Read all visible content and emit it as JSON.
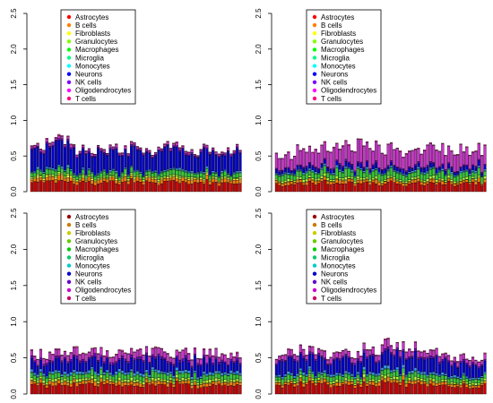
{
  "chart_data": {
    "type": "bar",
    "stacked": true,
    "categories": [
      "Astrocytes",
      "B cells",
      "Fibroblasts",
      "Granulocytes",
      "Macrophages",
      "Microglia",
      "Monocytes",
      "Neurons",
      "NK cells",
      "Oligodendrocytes",
      "T cells"
    ],
    "colors": [
      "#cc0000",
      "#ff7f00",
      "#ffff33",
      "#b3ff33",
      "#33cc33",
      "#33ffcc",
      "#3399ff",
      "#0000cc",
      "#6600cc",
      "#cc33cc",
      "#ff3399"
    ],
    "ylim": [
      0,
      2.5
    ],
    "yticks": [
      "0.0",
      "0.5",
      "1.0",
      "1.5",
      "2.0",
      "2.5"
    ],
    "panels": [
      {
        "name": "top-left",
        "legend_colors": [
          "#ff0000",
          "#ff8000",
          "#ffff00",
          "#80ff00",
          "#00ff00",
          "#00ff80",
          "#00ffff",
          "#0000ff",
          "#8000ff",
          "#ff00ff",
          "#ff0080"
        ],
        "n_bars": 70,
        "base": [
          0.14,
          0.05,
          0.02,
          0.02,
          0.06,
          0.01,
          0.02,
          0.3,
          0.02,
          0.03,
          0.01
        ],
        "means": [
          0.68,
          0.7,
          0.58,
          0.6,
          0.62,
          0.58,
          0.64,
          0.57,
          0.6,
          0.62
        ],
        "means_stack": "total"
      },
      {
        "name": "top-right",
        "legend_colors": [
          "#ff0000",
          "#ff8000",
          "#ffff00",
          "#80ff00",
          "#00ff00",
          "#00ff80",
          "#00ffff",
          "#0000ff",
          "#8000ff",
          "#ff00ff",
          "#ff0080"
        ],
        "n_bars": 70,
        "base": [
          0.12,
          0.04,
          0.01,
          0.03,
          0.08,
          0.01,
          0.02,
          0.05,
          0.02,
          0.25,
          0.01
        ],
        "means": [
          0.52,
          0.58,
          0.64,
          0.66,
          0.66,
          0.6,
          0.56,
          0.62,
          0.6,
          0.6
        ],
        "means_stack": "total"
      },
      {
        "name": "bottom-left",
        "legend_colors": [
          "#990000",
          "#cc7a00",
          "#cccc00",
          "#66cc00",
          "#00cc00",
          "#00cc66",
          "#00cccc",
          "#0000cc",
          "#6600cc",
          "#cc00cc",
          "#cc0066"
        ],
        "n_bars": 70,
        "base": [
          0.12,
          0.04,
          0.01,
          0.03,
          0.06,
          0.01,
          0.03,
          0.14,
          0.03,
          0.08,
          0.01
        ],
        "means": [
          0.56,
          0.58,
          0.6,
          0.58,
          0.56,
          0.58,
          0.58,
          0.56,
          0.56,
          0.56
        ],
        "means_stack": "total"
      },
      {
        "name": "bottom-right",
        "legend_colors": [
          "#990000",
          "#cc7a00",
          "#cccc00",
          "#66cc00",
          "#00cc00",
          "#00cc66",
          "#00cccc",
          "#0000cc",
          "#6600cc",
          "#cc00cc",
          "#cc0066"
        ],
        "n_bars": 70,
        "base": [
          0.14,
          0.04,
          0.01,
          0.03,
          0.06,
          0.01,
          0.03,
          0.2,
          0.03,
          0.08,
          0.01
        ],
        "means": [
          0.55,
          0.62,
          0.56,
          0.58,
          0.62,
          0.68,
          0.66,
          0.56,
          0.5,
          0.5
        ],
        "means_stack": "total"
      }
    ]
  }
}
